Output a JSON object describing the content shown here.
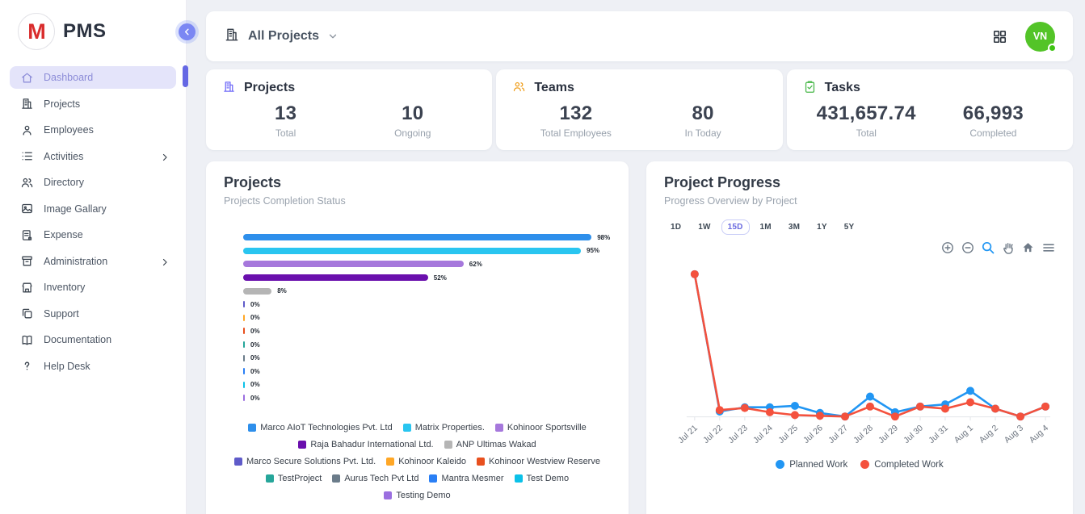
{
  "app": {
    "name": "PMS",
    "logo_letter": "M"
  },
  "sidebar": {
    "items": [
      {
        "label": "Dashboard",
        "icon": "home",
        "active": true,
        "chevron": false
      },
      {
        "label": "Projects",
        "icon": "building",
        "active": false,
        "chevron": false
      },
      {
        "label": "Employees",
        "icon": "person",
        "active": false,
        "chevron": false
      },
      {
        "label": "Activities",
        "icon": "list",
        "active": false,
        "chevron": true
      },
      {
        "label": "Directory",
        "icon": "people",
        "active": false,
        "chevron": false
      },
      {
        "label": "Image Gallary",
        "icon": "image",
        "active": false,
        "chevron": false
      },
      {
        "label": "Expense",
        "icon": "receipt",
        "active": false,
        "chevron": false
      },
      {
        "label": "Administration",
        "icon": "archive",
        "active": false,
        "chevron": true
      },
      {
        "label": "Inventory",
        "icon": "store",
        "active": false,
        "chevron": false
      },
      {
        "label": "Support",
        "icon": "copy",
        "active": false,
        "chevron": false
      },
      {
        "label": "Documentation",
        "icon": "book",
        "active": false,
        "chevron": false
      },
      {
        "label": "Help Desk",
        "icon": "help",
        "active": false,
        "chevron": false
      }
    ]
  },
  "topbar": {
    "project_filter": "All Projects",
    "avatar_initials": "VN"
  },
  "stats": [
    {
      "title": "Projects",
      "icon": "building",
      "accent": "#6f6af8",
      "metrics": [
        {
          "value": "13",
          "label": "Total"
        },
        {
          "value": "10",
          "label": "Ongoing"
        }
      ]
    },
    {
      "title": "Teams",
      "icon": "people",
      "accent": "#f0a020",
      "metrics": [
        {
          "value": "132",
          "label": "Total Employees"
        },
        {
          "value": "80",
          "label": "In Today"
        }
      ]
    },
    {
      "title": "Tasks",
      "icon": "clipboard-check",
      "accent": "#49b84a",
      "metrics": [
        {
          "value": "431,657.74",
          "label": "Total"
        },
        {
          "value": "66,993",
          "label": "Completed"
        }
      ]
    }
  ],
  "projects_panel": {
    "title": "Projects",
    "subtitle": "Projects Completion Status"
  },
  "progress_panel": {
    "title": "Project Progress",
    "subtitle": "Progress Overview by Project",
    "timeframes": [
      "1D",
      "1W",
      "15D",
      "1M",
      "3M",
      "1Y",
      "5Y"
    ],
    "active_timeframe": "15D",
    "toolbar_icons": [
      "zoom-in",
      "zoom-out",
      "selection-zoom",
      "pan",
      "home",
      "menu"
    ]
  },
  "chart_data": [
    {
      "type": "bar",
      "orientation": "horizontal",
      "title": "Projects Completion Status",
      "categories": [
        "Marco AIoT Technologies Pvt. Ltd",
        "Matrix Properties.",
        "Kohinoor Sportsville",
        "Raja Bahadur International Ltd.",
        "ANP Ultimas Wakad",
        "Marco Secure Solutions Pvt. Ltd.",
        "Kohinoor Kaleido",
        "Kohinoor Westview Reserve",
        "TestProject",
        "Aurus Tech Pvt Ltd",
        "Mantra Mesmer",
        "Test Demo",
        "Testing Demo"
      ],
      "values": [
        98,
        95,
        62,
        52,
        8,
        0,
        0,
        0,
        0,
        0,
        0,
        0,
        0
      ],
      "colors": [
        "#2e8feb",
        "#29c5f0",
        "#a678dc",
        "#6a0fad",
        "#b5b5b5",
        "#5f5bc9",
        "#ffa726",
        "#e8501e",
        "#26a69a",
        "#6b7c8a",
        "#2a7ff5",
        "#0bc1e8",
        "#9b6fe0"
      ],
      "value_suffix": "%",
      "xlim": [
        0,
        100
      ],
      "legend_position": "bottom"
    },
    {
      "type": "line",
      "x": [
        "Jul 21",
        "Jul 22",
        "Jul 23",
        "Jul 24",
        "Jul 25",
        "Jul 26",
        "Jul 27",
        "Jul 28",
        "Jul 29",
        "Jul 30",
        "Jul 31",
        "Aug 1",
        "Aug 2",
        "Aug 3",
        "Aug 4"
      ],
      "series": [
        {
          "name": "Planned Work",
          "color": "#2196f3",
          "values": [
            100,
            3.5,
            6.5,
            6.5,
            7.5,
            2.5,
            0,
            14,
            3,
            7,
            8.5,
            18,
            5.5,
            0,
            7
          ]
        },
        {
          "name": "Completed Work",
          "color": "#f4513d",
          "values": [
            100,
            4.5,
            6,
            3,
            1,
            0.5,
            0,
            7,
            0,
            7,
            5.5,
            10,
            5.5,
            0,
            7
          ]
        }
      ],
      "ylim": [
        0,
        105
      ],
      "grid": false,
      "legend_position": "bottom"
    }
  ]
}
